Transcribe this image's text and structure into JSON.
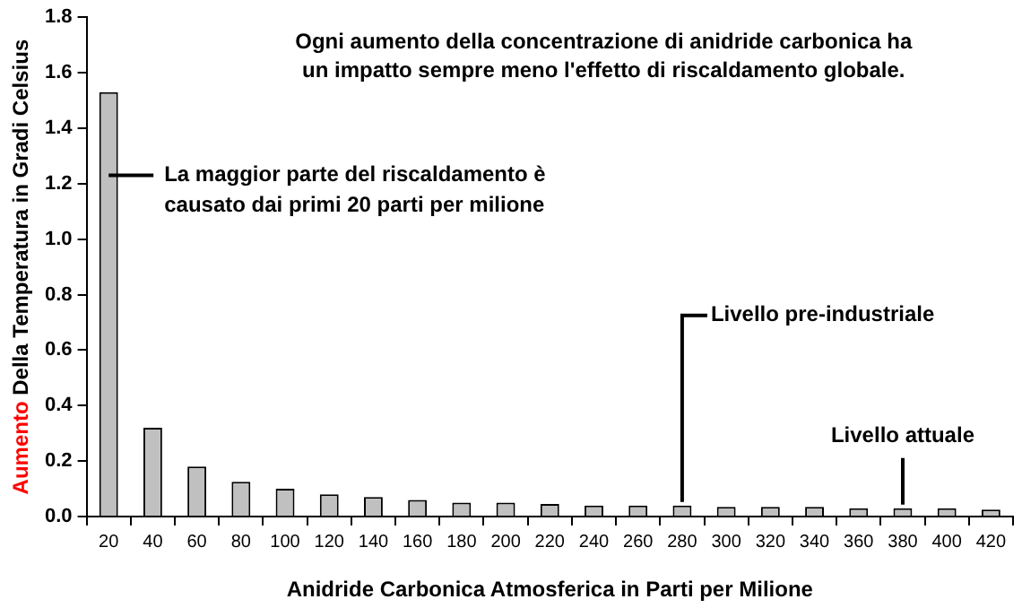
{
  "chart_data": {
    "type": "bar",
    "title": "Ogni aumento della concentrazione di anidride carbonica ha\nun impatto sempre meno l'effetto di riscaldamento globale.",
    "xlabel": "Anidride Carbonica Atmosferica in Parti per Milione",
    "ylabel": "Aumento Della Temperatura in Gradi Celsius",
    "categories": [
      "20",
      "40",
      "60",
      "80",
      "100",
      "120",
      "140",
      "160",
      "180",
      "200",
      "220",
      "240",
      "260",
      "280",
      "300",
      "320",
      "340",
      "360",
      "380",
      "400",
      "420"
    ],
    "values": [
      1.53,
      0.32,
      0.18,
      0.125,
      0.1,
      0.08,
      0.07,
      0.06,
      0.05,
      0.05,
      0.045,
      0.04,
      0.04,
      0.04,
      0.035,
      0.035,
      0.035,
      0.03,
      0.03,
      0.03,
      0.025
    ],
    "color": "#c0c0c0",
    "ylim": [
      0,
      1.8
    ],
    "yticks": [
      {
        "value": 0,
        "label": "0.0"
      },
      0.2,
      0.4,
      0.6,
      0.8,
      {
        "value": 1,
        "label": "1.0"
      },
      1.2,
      1.4,
      1.6,
      1.8
    ],
    "grid": false,
    "legend": false,
    "annotations": [
      {
        "text": "La maggior parte del riscaldamento è\ncausato dai primi 20 parti per milione",
        "x": "20",
        "y": 1.23
      },
      {
        "text": "Livello pre-industriale",
        "x": "280",
        "y": 0.04
      },
      {
        "text": "Livello attuale",
        "x": "380",
        "y": 0.03
      }
    ]
  }
}
